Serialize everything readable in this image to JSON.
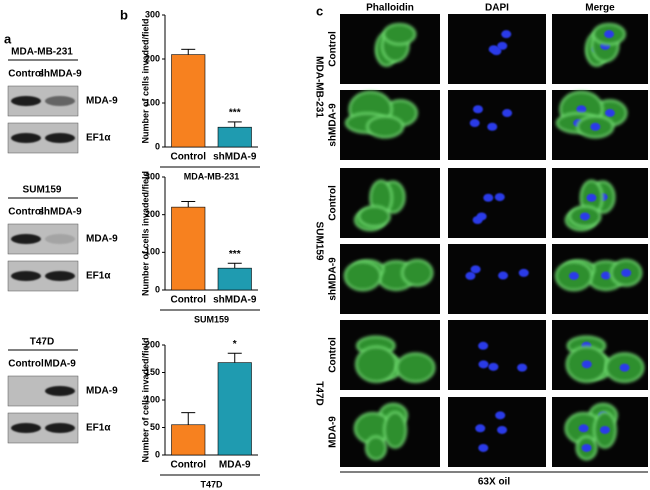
{
  "panel_labels": [
    "a",
    "b",
    "c"
  ],
  "blots": [
    {
      "cell_line": "MDA-MB-231",
      "lanes": [
        "Control",
        "shMDA-9"
      ],
      "bands": [
        "MDA-9",
        "EF1α"
      ]
    },
    {
      "cell_line": "SUM159",
      "lanes": [
        "Control",
        "shMDA-9"
      ],
      "bands": [
        "MDA-9",
        "EF1α"
      ]
    },
    {
      "cell_line": "T47D",
      "lanes": [
        "Control",
        "MDA-9"
      ],
      "bands": [
        "MDA-9",
        "EF1α"
      ]
    }
  ],
  "chart_data": [
    {
      "type": "bar",
      "ylabel": "Number of cells invaded/field",
      "xlabel": "MDA-MB-231",
      "categories": [
        "Control",
        "shMDA-9"
      ],
      "values": [
        210,
        45
      ],
      "errors": [
        12,
        12
      ],
      "colors": [
        "#f7811f",
        "#1f9bb0"
      ],
      "significance": [
        null,
        "***"
      ],
      "ylim": [
        0,
        300
      ],
      "yticks": [
        0,
        100,
        200,
        300
      ]
    },
    {
      "type": "bar",
      "ylabel": "Number of cells invaded/field",
      "xlabel": "SUM159",
      "categories": [
        "Control",
        "shMDA-9"
      ],
      "values": [
        220,
        58
      ],
      "errors": [
        15,
        13
      ],
      "colors": [
        "#f7811f",
        "#1f9bb0"
      ],
      "significance": [
        null,
        "***"
      ],
      "ylim": [
        0,
        300
      ],
      "yticks": [
        0,
        100,
        200,
        300
      ]
    },
    {
      "type": "bar",
      "ylabel": "Number of cells invaded/field",
      "xlabel": "T47D",
      "categories": [
        "Control",
        "MDA-9"
      ],
      "values": [
        55,
        168
      ],
      "errors": [
        22,
        17
      ],
      "colors": [
        "#f7811f",
        "#1f9bb0"
      ],
      "significance": [
        null,
        "*"
      ],
      "ylim": [
        0,
        200
      ],
      "yticks": [
        0,
        50,
        100,
        150,
        200
      ]
    }
  ],
  "microscopy": {
    "columns": [
      "Phalloidin",
      "DAPI",
      "Merge"
    ],
    "groups": [
      {
        "name": "MDA-MB-231",
        "rows": [
          "Control",
          "shMDA-9"
        ]
      },
      {
        "name": "SUM159",
        "rows": [
          "Control",
          "shMDA-9"
        ]
      },
      {
        "name": "T47D",
        "rows": [
          "Control",
          "MDA-9"
        ]
      }
    ],
    "magnification": "63X oil"
  }
}
